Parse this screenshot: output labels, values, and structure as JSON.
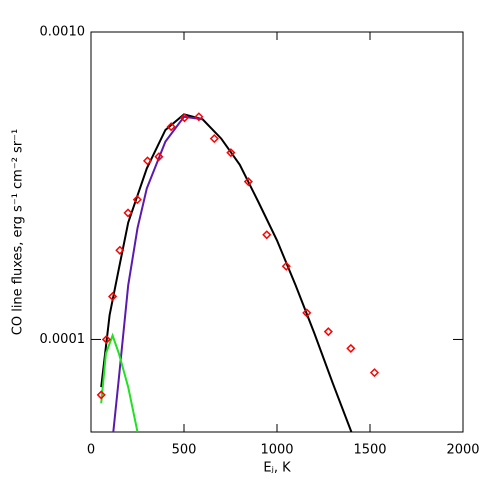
{
  "chart_data": {
    "type": "scatter",
    "xlabel": "Eⱼ, K",
    "ylabel": "CO line fluxes, erg s⁻¹ cm⁻² sr⁻¹",
    "xlim": [
      0,
      2000
    ],
    "xticks": [
      0,
      500,
      1000,
      1500,
      2000
    ],
    "ylim": [
      5e-05,
      0.001
    ],
    "ylog": true,
    "yticks": [
      {
        "value": 0.0001,
        "label": "0.0001"
      },
      {
        "value": 0.001,
        "label": "0.0010"
      }
    ],
    "series": [
      {
        "kind": "points",
        "color": "#ff0000",
        "x": [
          55,
          83,
          116,
          155,
          199,
          249,
          304,
          365,
          431,
          503,
          580,
          663,
          752,
          846,
          945,
          1050,
          1160,
          1276,
          1397,
          1524
        ],
        "values": [
          6.6e-05,
          0.0001,
          0.000138,
          0.000195,
          0.000258,
          0.000285,
          0.000381,
          0.000393,
          0.000492,
          0.000526,
          0.00053,
          0.00045,
          0.000405,
          0.000326,
          0.000219,
          0.000173,
          0.000122,
          0.000106,
          9.35e-05,
          7.8e-05
        ]
      },
      {
        "kind": "line",
        "color": "#000000",
        "x": [
          55,
          100,
          150,
          200,
          300,
          400,
          500,
          600,
          700,
          800,
          900,
          1000,
          1100,
          1200,
          1300,
          1400
        ],
        "values": [
          7e-05,
          0.00012,
          0.00017,
          0.00024,
          0.00036,
          0.00048,
          0.00054,
          0.00052,
          0.00045,
          0.00037,
          0.00028,
          0.00021,
          0.00015,
          0.000105,
          7.2e-05,
          5e-05
        ]
      },
      {
        "kind": "line",
        "color": "#5a1ab0",
        "x": [
          120,
          150,
          200,
          250,
          300,
          400,
          500,
          600
        ],
        "values": [
          5e-05,
          7.5e-05,
          0.00015,
          0.00023,
          0.00031,
          0.00044,
          0.00053,
          0.00052
        ]
      },
      {
        "kind": "line",
        "color": "#22e022",
        "x": [
          55,
          80,
          116,
          150,
          200,
          250
        ],
        "values": [
          6.2e-05,
          9e-05,
          0.000103,
          9e-05,
          7e-05,
          5e-05
        ]
      }
    ]
  }
}
